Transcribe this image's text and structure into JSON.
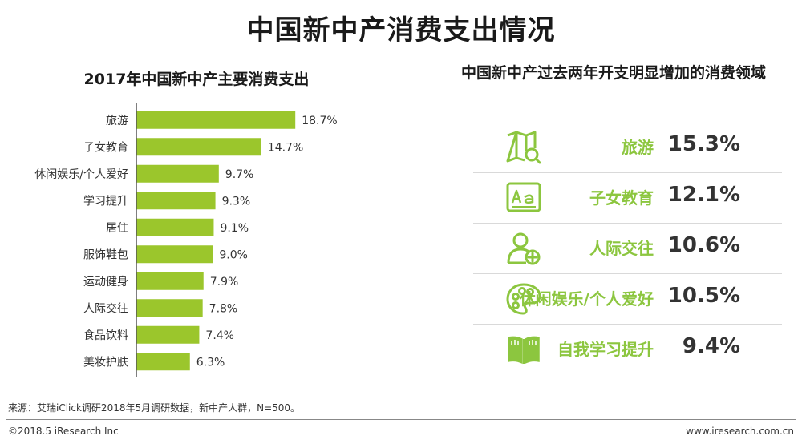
{
  "title": "中国新中产消费支出情况",
  "left_chart_title": "2017年中国新中产主要消费支出",
  "right_panel_title": "中国新中产过去两年开支明显增加的消费领域",
  "chart_data": [
    {
      "type": "bar",
      "orientation": "horizontal",
      "title": "2017年中国新中产主要消费支出",
      "categories": [
        "旅游",
        "子女教育",
        "休闲娱乐/个人爱好",
        "学习提升",
        "居住",
        "服饰鞋包",
        "运动健身",
        "人际交往",
        "食品饮料",
        "美妆护肤"
      ],
      "values": [
        18.7,
        14.7,
        9.7,
        9.3,
        9.1,
        9.0,
        7.9,
        7.8,
        7.4,
        6.3
      ],
      "value_labels": [
        "18.7%",
        "14.7%",
        "9.7%",
        "9.3%",
        "9.1%",
        "9.0%",
        "7.9%",
        "7.8%",
        "7.4%",
        "6.3%"
      ],
      "unit": "%",
      "xlim": [
        0,
        20
      ],
      "grid": false,
      "bar_color": "#9bc62c",
      "axis_color": "#555555"
    },
    {
      "type": "table",
      "title": "中国新中产过去两年开支明显增加的消费领域",
      "rows": [
        {
          "icon": "map-search-icon",
          "label": "旅游",
          "value": "15.3%"
        },
        {
          "icon": "text-board-icon",
          "label": "子女教育",
          "value": "12.1%"
        },
        {
          "icon": "person-add-icon",
          "label": "人际交往",
          "value": "10.6%"
        },
        {
          "icon": "palette-icon",
          "label": "休闲娱乐/个人爱好",
          "value": "10.5%"
        },
        {
          "icon": "open-book-icon",
          "label": "自我学习提升",
          "value": "9.4%"
        }
      ],
      "label_color": "#8cc63f",
      "icon_color": "#8cc63f"
    }
  ],
  "source": "来源：艾瑞iClick调研2018年5月调研数据，新中产人群，N=500。",
  "copyright": "©2018.5 iResearch Inc",
  "website": "www.iresearch.com.cn"
}
